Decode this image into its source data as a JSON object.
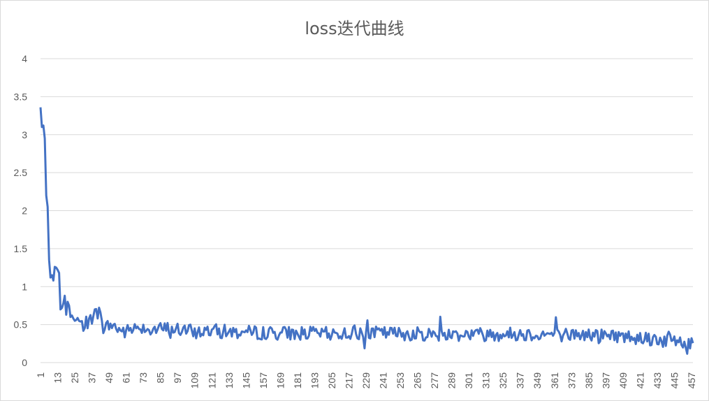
{
  "chart_data": {
    "type": "line",
    "title": "loss迭代曲线",
    "xlabel": "",
    "ylabel": "",
    "ylim": [
      0,
      4
    ],
    "yticks": [
      "0",
      "0.5",
      "1",
      "1.5",
      "2",
      "2.5",
      "3",
      "3.5",
      "4"
    ],
    "xlim": [
      1,
      458
    ],
    "xticks": [
      1,
      13,
      25,
      37,
      49,
      61,
      73,
      85,
      97,
      109,
      121,
      133,
      145,
      157,
      169,
      181,
      193,
      205,
      217,
      229,
      241,
      253,
      265,
      277,
      289,
      301,
      313,
      325,
      337,
      349,
      361,
      373,
      385,
      397,
      409,
      421,
      433,
      445,
      457
    ],
    "grid": true,
    "legend": "none",
    "series_color": "#4472C4",
    "key_points": {
      "x": [
        1,
        2,
        3,
        4,
        5,
        6,
        7,
        8,
        9,
        10,
        11,
        12,
        13,
        14,
        15,
        16,
        17,
        18,
        19,
        20,
        21,
        22,
        23,
        24,
        25,
        27,
        30,
        35,
        40,
        42,
        45,
        50,
        60,
        70,
        80,
        90,
        100,
        110,
        120,
        140,
        160,
        180,
        200,
        240,
        280,
        320,
        360,
        400,
        420,
        440,
        450,
        454,
        458
      ],
      "y": [
        3.36,
        3.1,
        3.12,
        2.95,
        2.2,
        2.05,
        1.35,
        1.12,
        1.15,
        1.08,
        1.26,
        1.25,
        1.22,
        1.18,
        0.7,
        0.72,
        0.78,
        0.88,
        0.63,
        0.8,
        0.75,
        0.6,
        0.62,
        0.58,
        0.55,
        0.57,
        0.48,
        0.55,
        0.65,
        0.68,
        0.45,
        0.5,
        0.4,
        0.48,
        0.43,
        0.45,
        0.43,
        0.4,
        0.42,
        0.4,
        0.39,
        0.39,
        0.38,
        0.39,
        0.37,
        0.38,
        0.37,
        0.36,
        0.33,
        0.3,
        0.28,
        0.18,
        0.3
      ]
    }
  }
}
